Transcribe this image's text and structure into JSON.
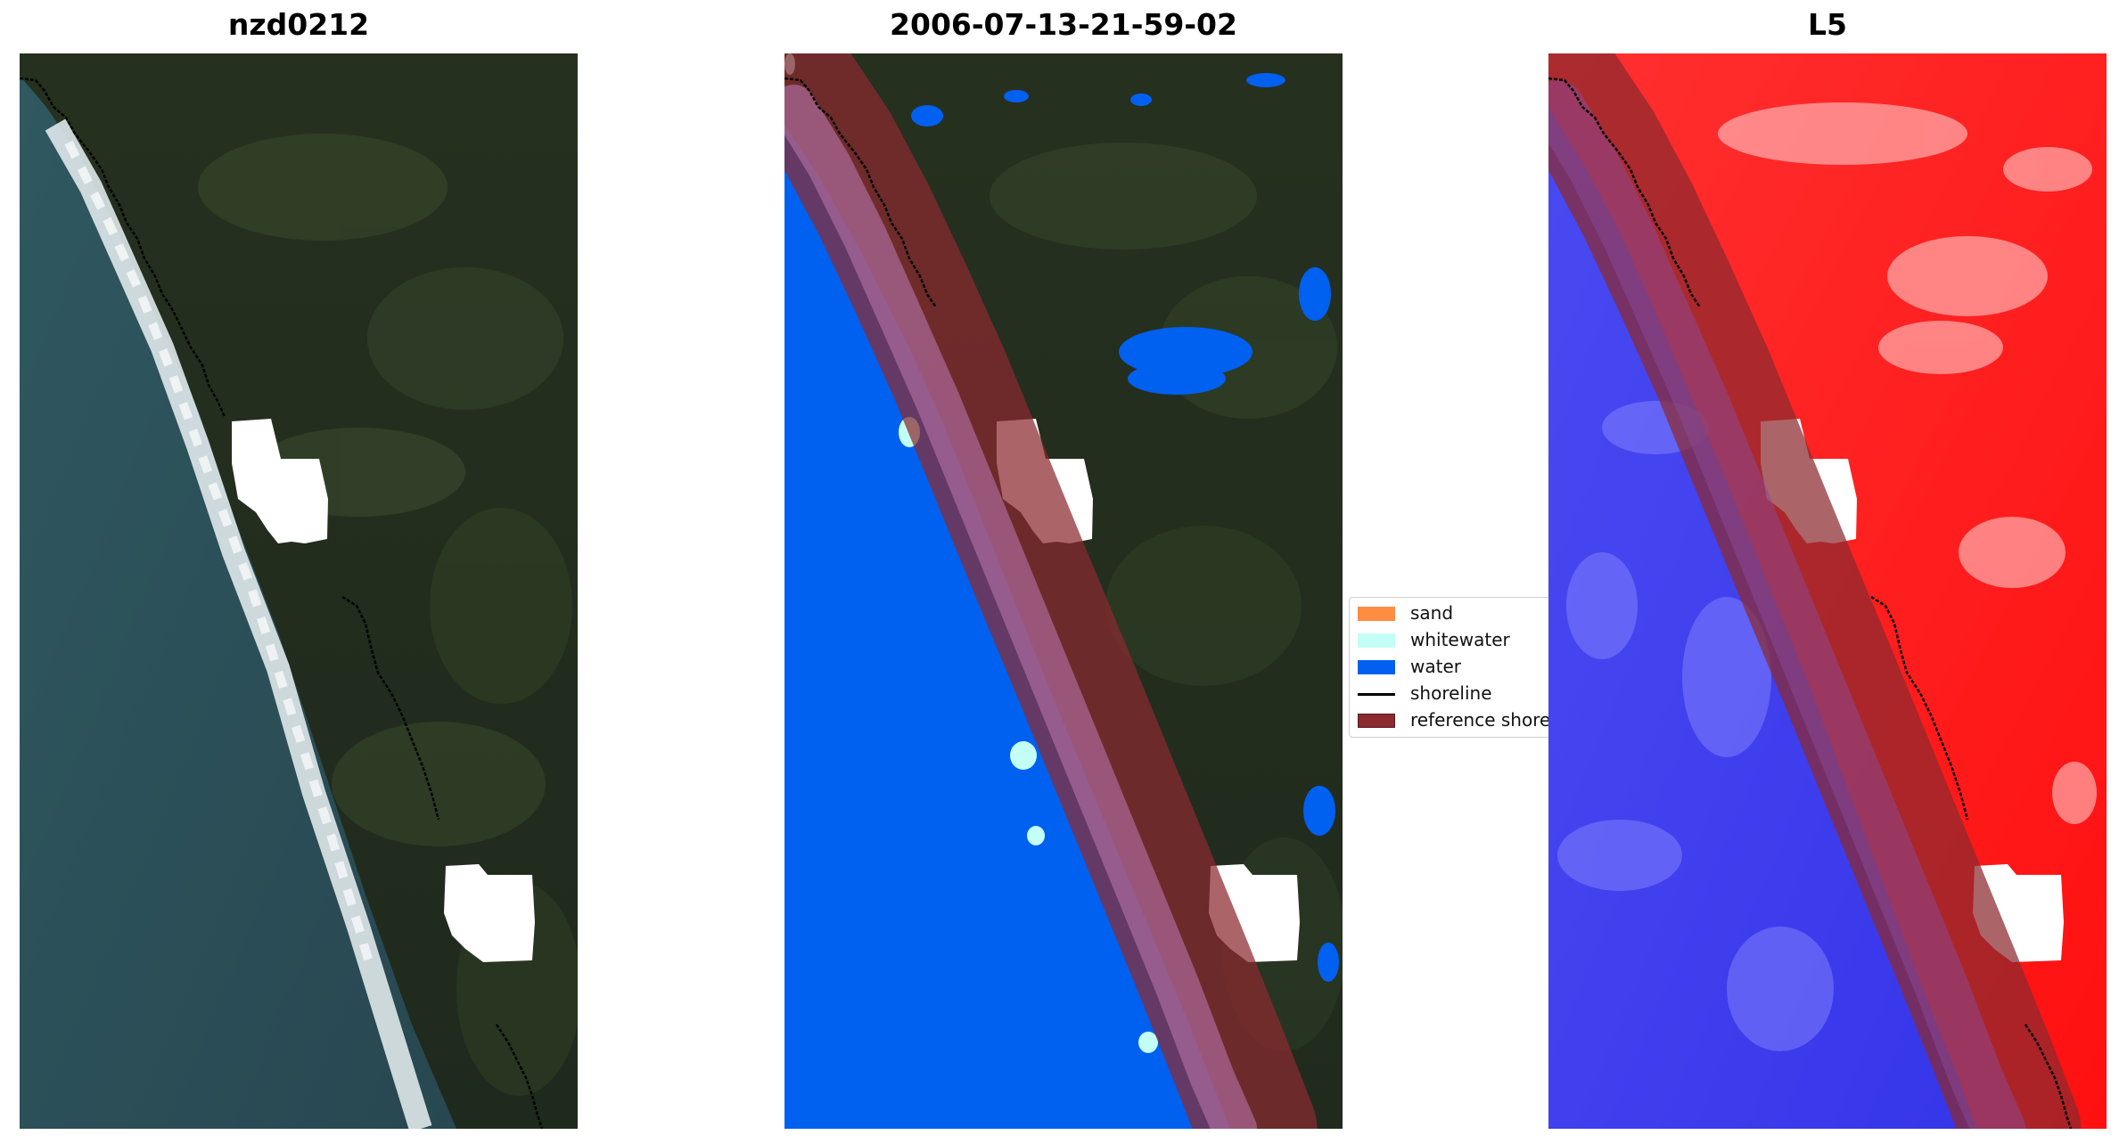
{
  "panels": {
    "rgb_title": "nzd0212",
    "classified_title": "2006-07-13-21-59-02",
    "mndwi_title": "L5"
  },
  "legend": {
    "items": [
      {
        "label": "sand",
        "color": "#ff8c42",
        "kind": "patch"
      },
      {
        "label": "whitewater",
        "color": "#c4fff7",
        "kind": "patch"
      },
      {
        "label": "water",
        "color": "#0060f0",
        "kind": "patch"
      },
      {
        "label": "shoreline",
        "color": "#000000",
        "kind": "line"
      },
      {
        "label": "reference shoreline buffer",
        "color": "#8b2a2f",
        "kind": "patch"
      }
    ]
  },
  "colors": {
    "land_dark": "#27331f",
    "ocean": "#2b4b52",
    "surf": "#e8eef0",
    "cloud_mask": "#ffffff",
    "water_class": "#0060f0",
    "whitewater_class": "#c4fff7",
    "buffer": "#8b2a2f",
    "index_land": "#ff1a1a",
    "index_water": "#2a2aee"
  }
}
